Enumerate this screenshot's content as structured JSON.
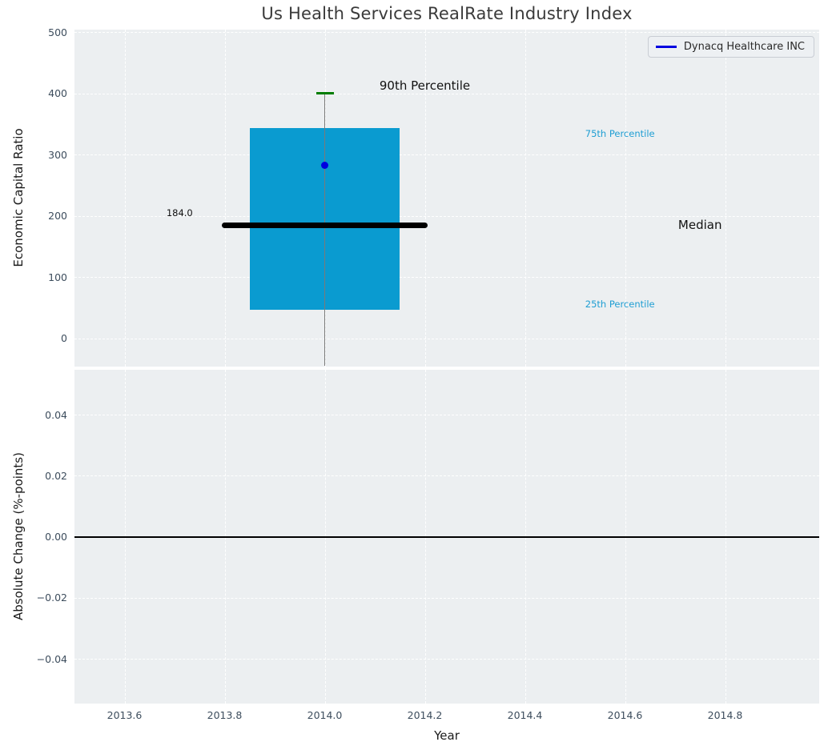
{
  "figure": {
    "title": "Us Health Services RealRate Industry Index",
    "background": "#ffffff",
    "axes_background": "#eceff1",
    "grid_color": "#ffffff",
    "tick_color": "#3d4d5d",
    "label_color": "#1a1a1a"
  },
  "legend": {
    "label": "Dynacq Healthcare INC",
    "line_color": "#0000e0",
    "position": "upper right"
  },
  "chart_data": [
    {
      "type": "boxplot",
      "title": "Us Health Services RealRate Industry Index",
      "ylabel": "Economic Capital Ratio",
      "ylim": [
        -46,
        504
      ],
      "xlim": [
        2013.5,
        2014.988
      ],
      "grid": true,
      "yticks": [
        {
          "value": 0,
          "label": "0"
        },
        {
          "value": 100,
          "label": "100"
        },
        {
          "value": 200,
          "label": "200"
        },
        {
          "value": 300,
          "label": "300"
        },
        {
          "value": 400,
          "label": "400"
        },
        {
          "value": 500,
          "label": "500"
        }
      ],
      "xtick_values": [
        2013.6,
        2013.8,
        2014.0,
        2014.2,
        2014.4,
        2014.6,
        2014.8
      ],
      "series": [
        {
          "name": "Dynacq Healthcare INC",
          "x": 2014.0,
          "box_width": 0.3,
          "q1": 46,
          "median": 184.0,
          "q3": 343,
          "p90": 400,
          "company_value": 282,
          "median_line_halfwidth": 0.205,
          "box_color": "#0a9bd0",
          "median_color": "#000000",
          "cap_color": "#007d00",
          "whisker_color": "#7a7a7a",
          "point_color": "#0000e0"
        }
      ],
      "annotations": [
        {
          "text": "90th Percentile",
          "x": 2014.2,
          "y": 412,
          "color": "#111111",
          "size": 15
        },
        {
          "text": "75th Percentile",
          "x": 2014.59,
          "y": 334,
          "color": "#1f9ed3",
          "size": 11.5
        },
        {
          "text": "Median",
          "x": 2014.75,
          "y": 185,
          "color": "#111111",
          "size": 15
        },
        {
          "text": "25th Percentile",
          "x": 2014.59,
          "y": 56,
          "color": "#1f9ed3",
          "size": 11.5
        },
        {
          "text": "184.0",
          "x": 2013.71,
          "y": 205,
          "color": "#111111",
          "size": 11.5
        }
      ]
    },
    {
      "type": "line",
      "ylabel": "Absolute Change (%-points)",
      "xlabel": "Year",
      "ylim": [
        -0.0547,
        0.0547
      ],
      "xlim": [
        2013.5,
        2014.988
      ],
      "grid": true,
      "zero_line": 0.0,
      "yticks": [
        {
          "value": 0.04,
          "label": "0.04"
        },
        {
          "value": 0.02,
          "label": "0.02"
        },
        {
          "value": 0.0,
          "label": "0.00"
        },
        {
          "value": -0.02,
          "label": "−0.02"
        },
        {
          "value": -0.04,
          "label": "−0.04"
        }
      ],
      "xticks": [
        {
          "value": 2013.6,
          "label": "2013.6"
        },
        {
          "value": 2013.8,
          "label": "2013.8"
        },
        {
          "value": 2014.0,
          "label": "2014.0"
        },
        {
          "value": 2014.2,
          "label": "2014.2"
        },
        {
          "value": 2014.4,
          "label": "2014.4"
        },
        {
          "value": 2014.6,
          "label": "2014.6"
        },
        {
          "value": 2014.8,
          "label": "2014.8"
        }
      ],
      "series": []
    }
  ]
}
